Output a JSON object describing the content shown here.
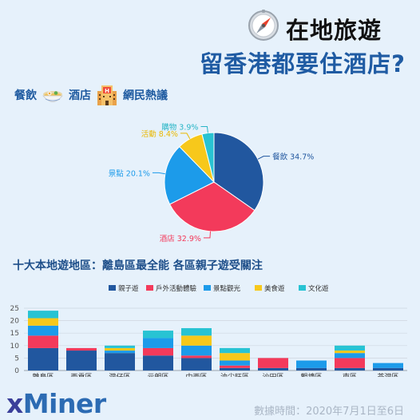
{
  "header": {
    "title_line1": "在地旅遊",
    "title_line2": "留香港都要住酒店?"
  },
  "subtitle": {
    "word1": "餐飲",
    "word2": "酒店",
    "word3": "網民熱議"
  },
  "icons": {
    "compass": "compass-icon",
    "food_bowl": "noodle-bowl-icon",
    "hotel": "hotel-icon"
  },
  "section_title": "十大本地遊地區：離島區最全能 各區親子遊受關注",
  "footer": {
    "logo": "xMiner",
    "date_range": "數據時間：2020年7月1日至6日"
  },
  "chart_data": [
    {
      "type": "pie",
      "labels": [
        "餐飲",
        "酒店",
        "景點",
        "活動",
        "購物"
      ],
      "values": [
        34.7,
        32.9,
        20.1,
        8.4,
        3.9
      ],
      "display_labels": [
        "餐飲 34.7%",
        "酒店 32.9%",
        "景點 20.1%",
        "活動 8.4%",
        "購物 3.9%"
      ],
      "colors": [
        "#21579f",
        "#f33a5b",
        "#1c9bea",
        "#f7c81b",
        "#28c3d3"
      ],
      "label_colors": [
        "#21579f",
        "#f33a5b",
        "#1c9bea",
        "#e9b800",
        "#28b5c6"
      ]
    },
    {
      "type": "bar",
      "stacked": true,
      "categories": [
        "離島區",
        "西貢區",
        "灣仔區",
        "元朗區",
        "中西區",
        "油尖旺區",
        "沙田區",
        "觀塘區",
        "南區",
        "荃灣區"
      ],
      "series": [
        {
          "name": "親子遊",
          "color": "#21579f",
          "values": [
            9,
            8,
            7,
            6,
            5,
            1,
            1,
            1,
            1,
            1
          ]
        },
        {
          "name": "戶外活動體驗",
          "color": "#f33a5b",
          "values": [
            5,
            1,
            0,
            3,
            1,
            1,
            4,
            0,
            4,
            0
          ]
        },
        {
          "name": "景點觀光",
          "color": "#1c9bea",
          "values": [
            4,
            0,
            1,
            4,
            4,
            2,
            0,
            3,
            2,
            2
          ]
        },
        {
          "name": "美食遊",
          "color": "#f7c81b",
          "values": [
            3,
            0,
            1,
            0,
            4,
            3,
            0,
            0,
            1,
            0
          ]
        },
        {
          "name": "文化遊",
          "color": "#28c3d3",
          "values": [
            3,
            0,
            1,
            3,
            3,
            2,
            0,
            0,
            2,
            0
          ]
        }
      ],
      "yticks": [
        0,
        5,
        10,
        15,
        20,
        25
      ],
      "ylim": [
        0,
        25
      ],
      "grid": true,
      "legend": "top-center"
    }
  ]
}
